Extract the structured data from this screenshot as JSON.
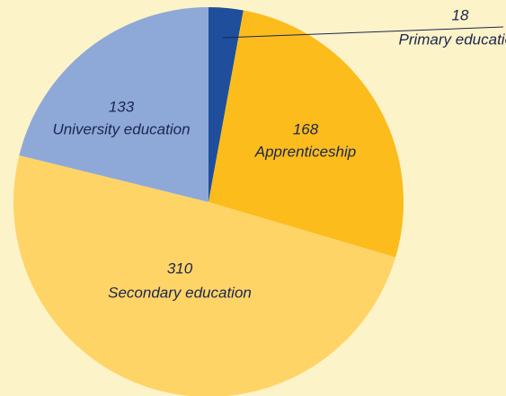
{
  "chart_data": {
    "type": "pie",
    "categories": [
      "Primary education",
      "Apprenticeship",
      "Secondary education",
      "University education"
    ],
    "values": [
      18,
      168,
      310,
      133
    ],
    "colors": [
      "#1f4e9c",
      "#fbbc1c",
      "#fed467",
      "#8ea9d8"
    ]
  }
}
